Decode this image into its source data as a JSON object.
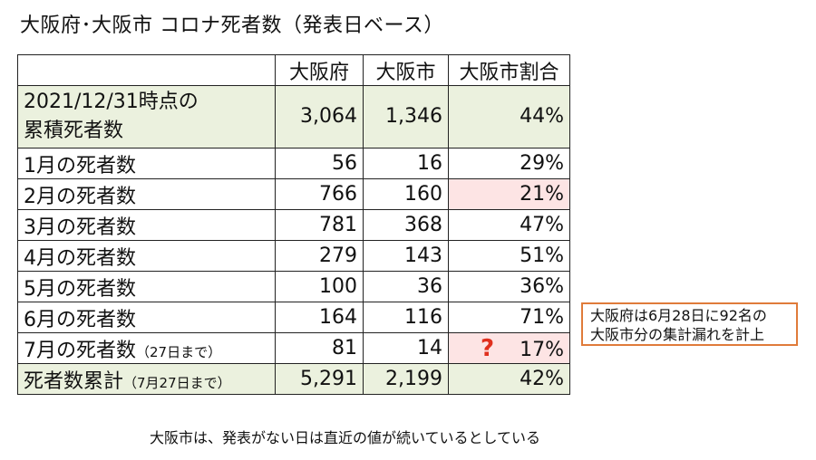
{
  "title": "大阪府･大阪市 コロナ死者数（発表日ベース）",
  "table": {
    "headers": [
      "",
      "大阪府",
      "大阪市",
      "大阪市割合"
    ],
    "cumulative_row": {
      "label_line1": "2021/12/31時点の",
      "label_line2": "累積死者数",
      "osaka_pref": "3,064",
      "osaka_city": "1,346",
      "ratio": "44%"
    },
    "monthly_rows": [
      {
        "label": "1月の死者数",
        "osaka_pref": "56",
        "osaka_city": "16",
        "ratio": "29%"
      },
      {
        "label": "2月の死者数",
        "osaka_pref": "766",
        "osaka_city": "160",
        "ratio": "21%"
      },
      {
        "label": "3月の死者数",
        "osaka_pref": "781",
        "osaka_city": "368",
        "ratio": "47%"
      },
      {
        "label": "4月の死者数",
        "osaka_pref": "279",
        "osaka_city": "143",
        "ratio": "51%"
      },
      {
        "label": "5月の死者数",
        "osaka_pref": "100",
        "osaka_city": "36",
        "ratio": "36%"
      },
      {
        "label": "6月の死者数",
        "osaka_pref": "164",
        "osaka_city": "116",
        "ratio": "71%"
      }
    ],
    "july_row": {
      "label": "7月の死者数",
      "label_note": "（27日まで）",
      "osaka_pref": "81",
      "osaka_city": "14",
      "question_mark": "?",
      "ratio": "17%"
    },
    "total_row": {
      "label": "死者数累計",
      "label_note": "（7月27日まで）",
      "osaka_pref": "5,291",
      "osaka_city": "2,199",
      "ratio": "42%"
    }
  },
  "note": {
    "line1": "大阪府は6月28日に92名の",
    "line2": "大阪市分の集計漏れを計上"
  },
  "footer": "大阪市は、発表がない日は直近の値が続いているとしている",
  "colors": {
    "highlight_row": "#ebf1de",
    "pink_cell": "#fde4e4",
    "question_mark": "#e0301e",
    "note_border": "#e07b3a"
  }
}
